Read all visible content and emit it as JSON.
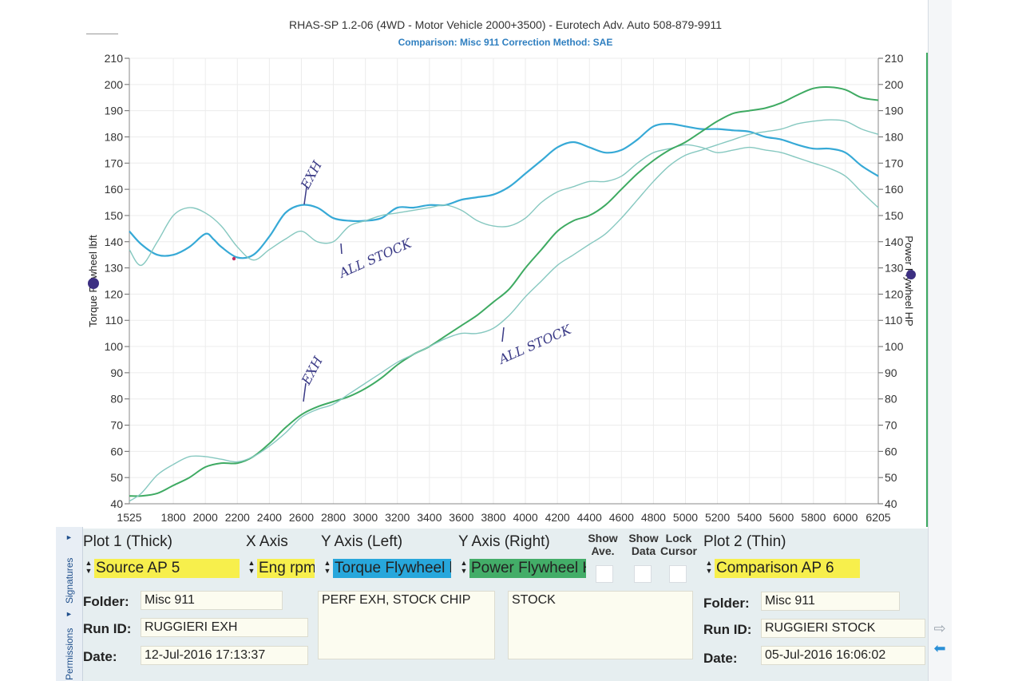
{
  "chart_data": {
    "type": "line",
    "title": "RHAS-SP 1.2-06  (4WD - Motor Vehicle 2000+3500) - Eurotech Adv. Auto 508-879-9911",
    "subtitle": "Comparison: Misc 911       Correction Method: SAE",
    "xlabel": "",
    "ylabel_left": "Torque Flywheel lbft",
    "ylabel_right": "Power Flywheel HP",
    "xlim": [
      1525,
      6205
    ],
    "ylim": [
      40,
      210
    ],
    "x_ticks": [
      "1525",
      "1800",
      "2000",
      "2200",
      "2400",
      "2600",
      "2800",
      "3000",
      "3200",
      "3400",
      "3600",
      "3800",
      "4000",
      "4200",
      "4400",
      "4600",
      "4800",
      "5000",
      "5200",
      "5400",
      "5600",
      "5800",
      "6000",
      "6205"
    ],
    "y_ticks": [
      "40",
      "50",
      "60",
      "70",
      "80",
      "90",
      "100",
      "110",
      "120",
      "130",
      "140",
      "150",
      "160",
      "170",
      "180",
      "190",
      "200",
      "210"
    ],
    "grid": true,
    "series": [
      {
        "id": "torque-exh",
        "color": "#36a9d6",
        "width": 2.2,
        "x": [
          1525,
          1600,
          1700,
          1800,
          1900,
          2000,
          2050,
          2100,
          2200,
          2300,
          2400,
          2500,
          2600,
          2700,
          2800,
          2900,
          3000,
          3100,
          3200,
          3300,
          3400,
          3500,
          3600,
          3700,
          3800,
          3900,
          4000,
          4100,
          4200,
          4300,
          4400,
          4500,
          4600,
          4700,
          4800,
          4900,
          5000,
          5100,
          5200,
          5300,
          5400,
          5500,
          5600,
          5700,
          5800,
          5900,
          6000,
          6100,
          6205
        ],
        "y": [
          144,
          139,
          135,
          135,
          138,
          143,
          141,
          138,
          134,
          135,
          142,
          151,
          154,
          153,
          149,
          148,
          148,
          149,
          153,
          153,
          154,
          154,
          156,
          157,
          158,
          161,
          166,
          171,
          176,
          178,
          176,
          174,
          175,
          179,
          184,
          185,
          184,
          183,
          183,
          182.5,
          182,
          180,
          179,
          177,
          175.5,
          175.5,
          174,
          169,
          165
        ]
      },
      {
        "id": "torque-stock",
        "color": "#86c8c0",
        "width": 1.4,
        "x": [
          1525,
          1600,
          1700,
          1800,
          1900,
          2000,
          2100,
          2200,
          2300,
          2400,
          2500,
          2600,
          2700,
          2800,
          2900,
          3000,
          3100,
          3200,
          3300,
          3400,
          3500,
          3600,
          3700,
          3800,
          3900,
          4000,
          4100,
          4200,
          4300,
          4400,
          4500,
          4600,
          4700,
          4800,
          4900,
          5000,
          5100,
          5200,
          5300,
          5400,
          5500,
          5600,
          5700,
          5800,
          5900,
          6000,
          6100,
          6205
        ],
        "y": [
          137,
          131,
          140,
          150,
          153,
          151,
          146,
          138,
          133,
          137,
          141,
          144,
          140,
          140,
          146,
          148,
          150,
          151,
          152,
          153,
          154,
          152,
          148,
          146,
          146,
          149,
          155,
          159,
          161,
          163,
          163,
          165,
          170,
          174,
          175.5,
          177,
          176,
          174,
          175,
          176,
          175,
          174,
          172,
          170,
          168,
          165,
          159,
          153
        ]
      },
      {
        "id": "power-exh",
        "color": "#3eaa62",
        "width": 2.0,
        "x": [
          1525,
          1600,
          1700,
          1800,
          1900,
          2000,
          2100,
          2200,
          2300,
          2400,
          2500,
          2600,
          2700,
          2800,
          2900,
          3000,
          3100,
          3200,
          3300,
          3400,
          3500,
          3600,
          3700,
          3800,
          3900,
          4000,
          4100,
          4200,
          4300,
          4400,
          4500,
          4600,
          4700,
          4800,
          4900,
          5000,
          5100,
          5200,
          5300,
          5400,
          5500,
          5600,
          5700,
          5800,
          5900,
          6000,
          6100,
          6205
        ],
        "y": [
          43,
          43,
          44,
          47,
          50,
          54,
          55.5,
          55.5,
          58,
          63,
          69,
          74,
          77,
          79,
          81,
          84,
          88,
          93,
          97,
          100,
          104,
          108,
          112,
          117,
          122,
          130,
          137,
          144,
          148,
          150,
          154,
          160,
          166,
          171,
          175,
          178,
          182,
          186,
          189,
          190,
          191,
          193,
          196,
          198.5,
          199,
          198,
          195,
          194
        ]
      },
      {
        "id": "power-stock",
        "color": "#86c8c0",
        "width": 1.4,
        "x": [
          1525,
          1600,
          1700,
          1800,
          1900,
          2000,
          2100,
          2200,
          2300,
          2400,
          2500,
          2600,
          2700,
          2800,
          2900,
          3000,
          3100,
          3200,
          3300,
          3400,
          3500,
          3600,
          3700,
          3800,
          3900,
          4000,
          4100,
          4200,
          4300,
          4400,
          4500,
          4600,
          4700,
          4800,
          4900,
          5000,
          5100,
          5200,
          5300,
          5400,
          5500,
          5600,
          5700,
          5800,
          5900,
          6000,
          6100,
          6205
        ],
        "y": [
          41,
          44,
          51,
          55,
          58,
          58,
          57,
          56,
          58,
          62,
          67,
          73,
          76,
          78,
          82,
          86,
          90,
          94,
          97,
          100,
          103,
          105,
          105,
          107,
          112,
          119,
          125,
          131,
          135,
          139,
          143,
          149,
          156,
          163,
          169,
          173,
          175,
          177,
          179,
          181,
          182,
          183,
          185,
          186,
          186.5,
          186,
          183,
          181
        ]
      }
    ],
    "annotations": [
      "EXH",
      "ALL STOCK",
      "EXH",
      "ALL STOCK"
    ]
  },
  "panel": {
    "plot1_label": "Plot 1 (Thick)",
    "xaxis_label": "X Axis",
    "yleft_label": "Y Axis (Left)",
    "yright_label": "Y Axis (Right)",
    "show_ave_label": "Show Ave.",
    "show_data_label": "Show Data",
    "lock_cursor_label": "Lock Cursor",
    "plot2_label": "Plot 2 (Thin)",
    "source_value": "Source AP 5",
    "xaxis_value": "Eng rpm",
    "yleft_value": "Torque Flywheel lbft",
    "yright_value": "Power Flywheel HP",
    "comparison_value": "Comparison AP 6",
    "folder_label": "Folder:",
    "runid_label": "Run ID:",
    "date_label": "Date:",
    "left_folder": "Misc 911",
    "left_runid": "RUGGIERI EXH",
    "left_date": "12-Jul-2016  17:13:37",
    "memo_left": "PERF EXH, STOCK CHIP",
    "memo_right": "STOCK",
    "right_folder": "Misc 911",
    "right_runid": "RUGGIERI STOCK",
    "right_date": "05-Jul-2016  16:06:02"
  },
  "sidebar": {
    "tab_signatures": "Signatures",
    "tab_permissions": "Permissions"
  },
  "colors": {
    "yellow": "#f7ef4c",
    "blue": "#27a7dc",
    "green": "#43ad68",
    "panel_bg": "#e6eef0"
  }
}
